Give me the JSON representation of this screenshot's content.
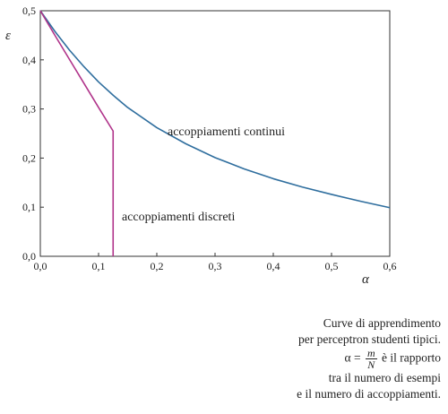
{
  "chart_data": {
    "type": "line",
    "xlabel": "α",
    "ylabel": "ε",
    "xlim": [
      0,
      0.6
    ],
    "ylim": [
      0,
      0.5
    ],
    "xticks": [
      "0,0",
      "0,1",
      "0,2",
      "0,3",
      "0,4",
      "0,5",
      "0,6"
    ],
    "yticks": [
      "0,0",
      "0,1",
      "0,2",
      "0,3",
      "0,4",
      "0,5"
    ],
    "grid": false,
    "series": [
      {
        "name": "accoppiamenti continui",
        "color": "#2f6e9e",
        "x": [
          0,
          0.025,
          0.05,
          0.075,
          0.1,
          0.125,
          0.15,
          0.2,
          0.25,
          0.3,
          0.35,
          0.4,
          0.45,
          0.5,
          0.55,
          0.6
        ],
        "y": [
          0.5,
          0.458,
          0.42,
          0.386,
          0.355,
          0.328,
          0.303,
          0.262,
          0.229,
          0.201,
          0.178,
          0.158,
          0.141,
          0.126,
          0.112,
          0.099
        ]
      },
      {
        "name": "accoppiamenti discreti",
        "color": "#b0338a",
        "x": [
          0,
          0.025,
          0.05,
          0.075,
          0.1,
          0.125,
          0.125
        ],
        "y": [
          0.5,
          0.45,
          0.401,
          0.352,
          0.303,
          0.255,
          0
        ]
      }
    ]
  },
  "caption": {
    "line1": "Curve di apprendimento",
    "line2": "per perceptron studenti tipici.",
    "alpha_eq": "α =",
    "frac_num": "m",
    "frac_den": "N",
    "line3_rest": "è il rapporto",
    "line4": "tra il numero di esempi",
    "line5": "e il numero di accoppiamenti."
  }
}
